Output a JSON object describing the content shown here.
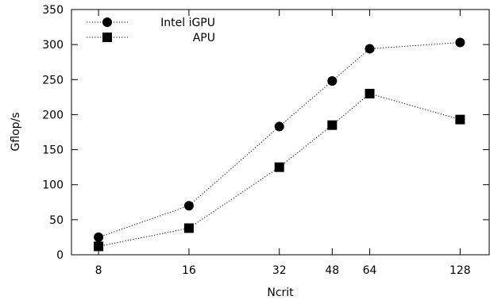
{
  "chart_data": {
    "type": "line",
    "xlabel": "Ncrit",
    "ylabel": "Gflop/s",
    "x_scale": "log2",
    "xlim": [
      6.5,
      160
    ],
    "ylim": [
      0,
      350
    ],
    "x_ticks": [
      8,
      16,
      32,
      48,
      64,
      128
    ],
    "y_ticks": [
      0,
      50,
      100,
      150,
      200,
      250,
      300,
      350
    ],
    "grid": false,
    "legend_position": "top-left",
    "series": [
      {
        "name": "Intel iGPU",
        "marker": "circle",
        "line_style": "dotted",
        "color": "#000000",
        "x": [
          8,
          16,
          32,
          48,
          64,
          128
        ],
        "y": [
          25,
          70,
          183,
          248,
          294,
          303
        ]
      },
      {
        "name": "APU",
        "marker": "square",
        "line_style": "dotted",
        "color": "#000000",
        "x": [
          8,
          16,
          32,
          48,
          64,
          128
        ],
        "y": [
          12,
          38,
          125,
          185,
          230,
          193
        ]
      }
    ]
  }
}
